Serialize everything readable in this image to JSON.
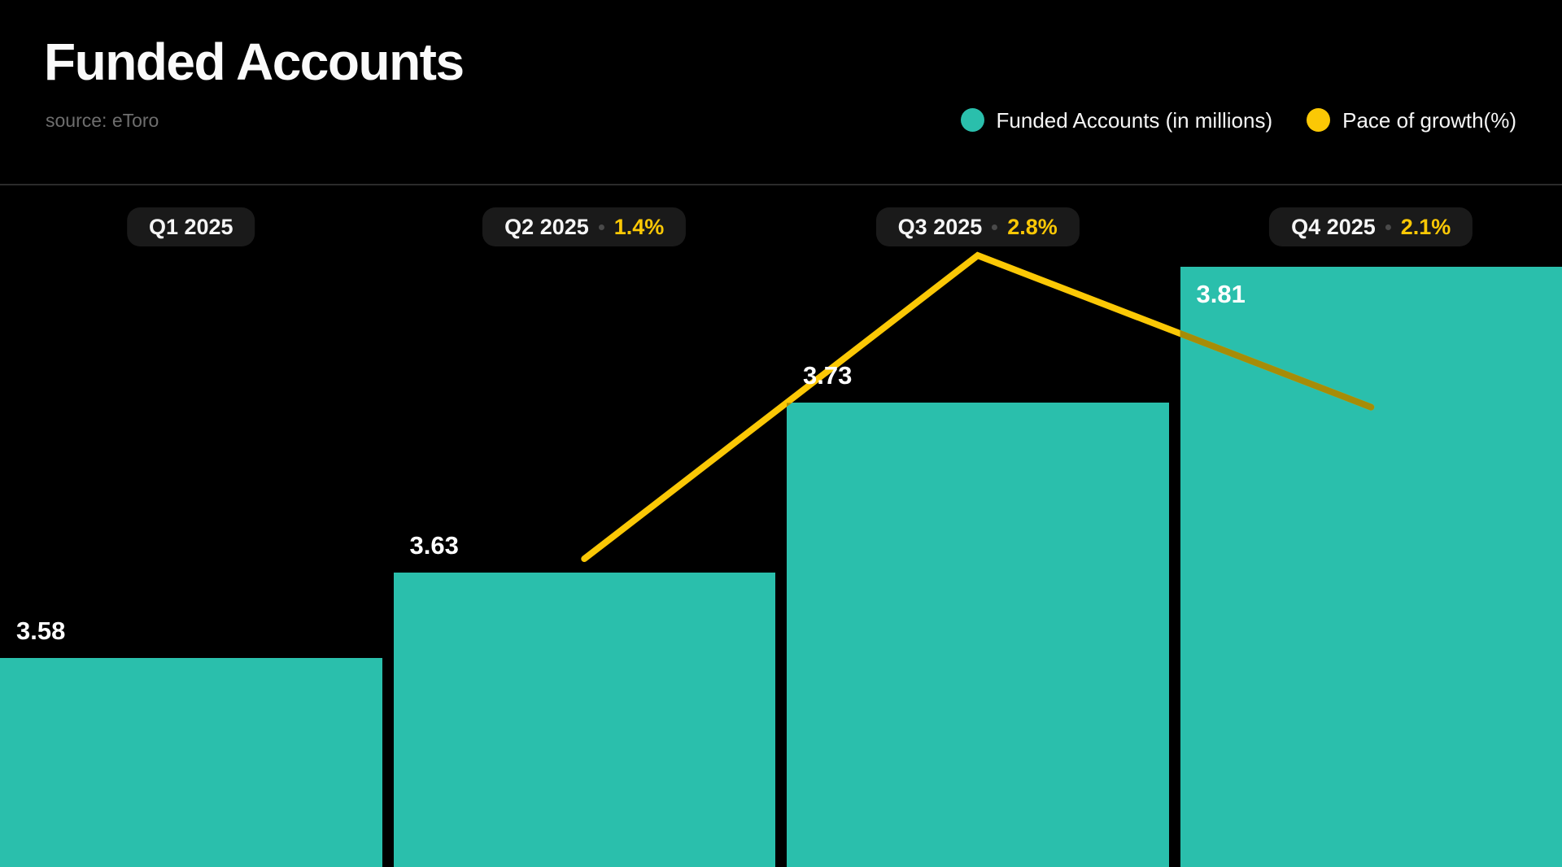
{
  "header": {
    "title": "Funded Accounts",
    "source": "source: eToro"
  },
  "legend": {
    "position": "top-right",
    "items": [
      {
        "label": "Funded Accounts (in millions)",
        "color": "#2abfac"
      },
      {
        "label": "Pace of growth(%)",
        "color": "#fbc805"
      }
    ]
  },
  "chart_data": {
    "type": "bar",
    "title": "Funded Accounts",
    "source": "source: eToro",
    "categories": [
      "Q1 2025",
      "Q2 2025",
      "Q3 2025",
      "Q4 2025"
    ],
    "series": [
      {
        "name": "Funded Accounts (in millions)",
        "type": "bar",
        "color": "#2abfac",
        "values": [
          3.58,
          3.63,
          3.73,
          3.81
        ],
        "data_labels": [
          "3.58",
          "3.63",
          "3.73",
          "3.81"
        ]
      },
      {
        "name": "Pace of growth(%)",
        "type": "line",
        "color": "#fbc805",
        "color_over_bar": "#a68c08",
        "values": [
          null,
          1.4,
          2.8,
          2.1
        ],
        "data_labels": [
          null,
          "1.4%",
          "2.8%",
          "2.1%"
        ]
      }
    ],
    "xlabel": "",
    "ylabel": "",
    "grid": false,
    "legend_position": "top-right",
    "ylim_bars": [
      3.457,
      3.967
    ],
    "ylim_growth": [
      0,
      4.0
    ]
  }
}
